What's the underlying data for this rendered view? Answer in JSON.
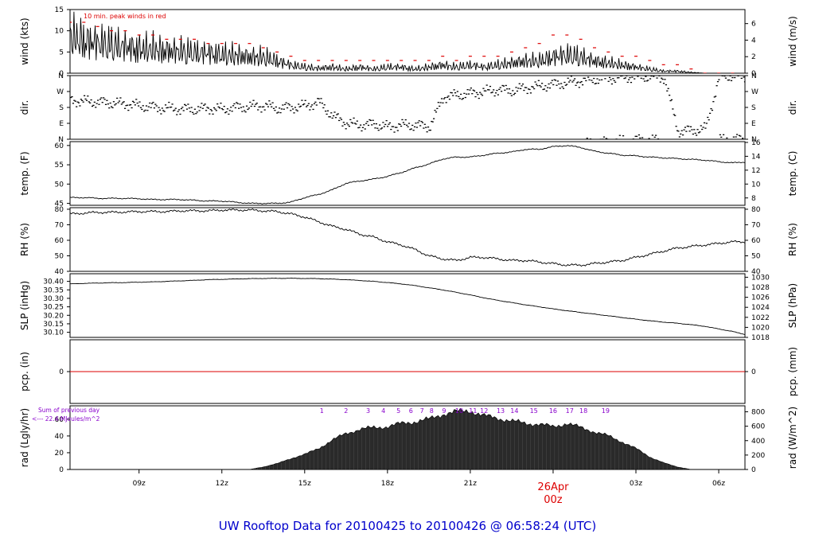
{
  "footer_title": "UW Rooftop Data for 20100425  to  20100426 @ 06:58:24  (UTC)",
  "colors": {
    "peak": "#dd0000",
    "pcp_line": "#dd0000",
    "title": "#0000cc",
    "hour_labels": "#8800cc",
    "date": "#dd0000"
  },
  "chart_data": [
    {
      "type": "line",
      "id": "wind",
      "ylabel": "wind (kts)",
      "ylabel_right": "wind (m/s)",
      "ylim": [
        0,
        15
      ],
      "yticks": [
        "0",
        "5",
        "10",
        "15"
      ],
      "ylim_right": [
        0,
        7.7
      ],
      "yticks_right": [
        "0",
        "2",
        "4",
        "6"
      ],
      "annotation": "10 min. peak winds in red",
      "x": [
        6.5,
        7,
        7.5,
        8,
        8.5,
        9,
        9.5,
        10,
        10.5,
        11,
        11.5,
        12,
        12.5,
        13,
        13.5,
        14,
        14.5,
        15,
        15.5,
        16,
        16.5,
        17,
        17.5,
        18,
        18.5,
        19,
        19.5,
        20,
        20.5,
        21,
        21.5,
        22,
        22.5,
        23,
        23.5,
        24,
        24.5,
        25,
        25.5,
        26,
        26.5,
        27,
        27.5,
        28,
        28.5,
        29,
        29.5,
        30,
        30.5,
        31
      ],
      "values": [
        9.5,
        8,
        7.5,
        7,
        6.5,
        6,
        6,
        5.5,
        5.5,
        5,
        5,
        4.5,
        4.5,
        4,
        4,
        3,
        2,
        1.5,
        1.2,
        1.5,
        1,
        1.5,
        1,
        1.5,
        1.5,
        1,
        1.5,
        2,
        1.5,
        2,
        1.5,
        2,
        2.5,
        3,
        3,
        4,
        4.5,
        4,
        3,
        2.5,
        2,
        1.5,
        1,
        0.5,
        0.5,
        0.2,
        0,
        0,
        0,
        0
      ],
      "peaks": [
        12,
        12,
        11,
        10,
        10,
        9,
        9,
        8,
        8,
        8,
        7,
        7,
        7,
        7,
        6,
        5,
        4,
        3,
        3,
        3,
        3,
        3,
        3,
        3,
        3,
        3,
        3,
        4,
        3,
        4,
        4,
        4,
        5,
        6,
        7,
        9,
        9,
        8,
        6,
        5,
        4,
        4,
        3,
        2,
        2,
        1,
        0,
        0,
        0,
        0
      ]
    },
    {
      "type": "scatter",
      "id": "dir",
      "ylabel": "dir.",
      "ylabel_right": "dir.",
      "ylim": [
        0,
        360
      ],
      "yticks": [
        "N",
        "E",
        "S",
        "W",
        "N"
      ],
      "yticks_right": [
        "N",
        "E",
        "S",
        "W",
        "N"
      ],
      "x": [
        6.5,
        7,
        7.5,
        8,
        8.5,
        9,
        9.5,
        10,
        10.5,
        11,
        11.5,
        12,
        12.5,
        13,
        13.5,
        14,
        14.5,
        15,
        15.5,
        16,
        16.5,
        17,
        17.5,
        18,
        18.5,
        19,
        19.5,
        20,
        20.5,
        21,
        21.5,
        22,
        22.5,
        23,
        23.5,
        24,
        24.5,
        25,
        25.5,
        26,
        26.5,
        27,
        27.5,
        28,
        28.5,
        29,
        29.5,
        30,
        30.5,
        31
      ],
      "values": [
        220,
        215,
        210,
        205,
        200,
        190,
        180,
        175,
        170,
        170,
        175,
        170,
        180,
        185,
        190,
        175,
        180,
        190,
        210,
        130,
        90,
        80,
        85,
        70,
        80,
        80,
        70,
        240,
        250,
        260,
        270,
        280,
        275,
        290,
        300,
        310,
        320,
        330,
        340,
        345,
        350,
        355,
        355,
        350,
        45,
        50,
        60,
        355,
        360,
        355
      ]
    },
    {
      "type": "line",
      "id": "temp",
      "ylabel": "temp. (F)",
      "ylabel_right": "temp. (C)",
      "ylim": [
        44.5,
        61
      ],
      "yticks": [
        "45",
        "50",
        "55",
        "60"
      ],
      "ylim_right": [
        6.94,
        16.11
      ],
      "yticks_right": [
        "8",
        "10",
        "12",
        "14",
        "16"
      ],
      "x": [
        6.5,
        7,
        7.5,
        8,
        8.5,
        9,
        9.5,
        10,
        10.5,
        11,
        11.5,
        12,
        12.5,
        13,
        13.5,
        14,
        14.5,
        15,
        15.5,
        16,
        16.5,
        17,
        17.5,
        18,
        18.5,
        19,
        19.5,
        20,
        20.5,
        21,
        21.5,
        22,
        22.5,
        23,
        23.5,
        24,
        24.5,
        25,
        25.5,
        26,
        26.5,
        27,
        27.5,
        28,
        28.5,
        29,
        29.5,
        30,
        30.5,
        31
      ],
      "values": [
        46.5,
        46.5,
        46.3,
        46.3,
        46.3,
        46.2,
        46,
        46,
        46,
        45.8,
        45.6,
        45.6,
        45.3,
        45,
        45,
        45,
        45.3,
        46.5,
        47.3,
        48.5,
        50.2,
        50.8,
        51.3,
        52,
        53,
        54.2,
        55.2,
        56.5,
        57,
        57,
        57.5,
        58,
        58.3,
        59,
        59,
        59.7,
        60,
        59.5,
        58.5,
        58,
        57.5,
        57.3,
        57,
        56.8,
        56.6,
        56.4,
        56.2,
        55.8,
        55.5,
        55.7
      ]
    },
    {
      "type": "line",
      "id": "rh",
      "ylabel": "RH (%)",
      "ylabel_right": "RH (%)",
      "ylim": [
        40,
        81
      ],
      "yticks": [
        "40",
        "50",
        "60",
        "70",
        "80"
      ],
      "yticks_right": [
        "40",
        "50",
        "60",
        "70",
        "80"
      ],
      "x": [
        6.5,
        7,
        7.5,
        8,
        8.5,
        9,
        9.5,
        10,
        10.5,
        11,
        11.5,
        12,
        12.5,
        13,
        13.5,
        14,
        14.5,
        15,
        15.5,
        16,
        16.5,
        17,
        17.5,
        18,
        18.5,
        19,
        19.5,
        20,
        20.5,
        21,
        21.5,
        22,
        22.5,
        23,
        23.5,
        24,
        24.5,
        25,
        25.5,
        26,
        26.5,
        27,
        27.5,
        28,
        28.5,
        29,
        29.5,
        30,
        30.5,
        31
      ],
      "values": [
        77,
        77.5,
        78,
        78,
        78.2,
        78.5,
        78.5,
        78.5,
        79,
        79,
        79,
        79.5,
        79.5,
        79.5,
        79,
        78.5,
        77,
        75,
        72,
        69,
        67,
        64,
        62,
        59,
        57,
        54,
        50,
        48,
        47,
        49,
        49,
        48,
        47,
        47,
        46,
        45,
        44,
        44,
        45,
        46,
        47,
        49,
        51,
        53,
        55,
        56,
        57,
        58,
        59,
        59
      ]
    },
    {
      "type": "line",
      "id": "slp",
      "ylabel": "SLP (inHg)",
      "ylabel_right": "SLP (hPa)",
      "ylim": [
        30.07,
        30.445
      ],
      "yticks": [
        "30.10",
        "30.15",
        "30.20",
        "30.25",
        "30.30",
        "30.35",
        "30.40"
      ],
      "ylim_right": [
        1018,
        1030.7
      ],
      "yticks_right": [
        "1018",
        "1020",
        "1022",
        "1024",
        "1026",
        "1028",
        "1030"
      ],
      "x": [
        6.5,
        7,
        7.5,
        8,
        8.5,
        9,
        9.5,
        10,
        10.5,
        11,
        11.5,
        12,
        12.5,
        13,
        13.5,
        14,
        14.5,
        15,
        15.5,
        16,
        16.5,
        17,
        17.5,
        18,
        18.5,
        19,
        19.5,
        20,
        20.5,
        21,
        21.5,
        22,
        22.5,
        23,
        23.5,
        24,
        24.5,
        25,
        25.5,
        26,
        26.5,
        27,
        27.5,
        28,
        28.5,
        29,
        29.5,
        30,
        30.5,
        31
      ],
      "values": [
        30.385,
        30.388,
        30.39,
        30.392,
        30.393,
        30.395,
        30.397,
        30.4,
        30.403,
        30.406,
        30.41,
        30.412,
        30.414,
        30.416,
        30.417,
        30.418,
        30.418,
        30.417,
        30.416,
        30.413,
        30.41,
        30.405,
        30.4,
        30.393,
        30.385,
        30.375,
        30.362,
        30.35,
        30.335,
        30.32,
        30.303,
        30.288,
        30.275,
        30.262,
        30.25,
        30.238,
        30.227,
        30.217,
        30.207,
        30.197,
        30.187,
        30.177,
        30.168,
        30.16,
        30.153,
        30.145,
        30.135,
        30.12,
        30.105,
        30.085
      ]
    },
    {
      "type": "line",
      "id": "pcp",
      "ylabel": "pcp. (in)",
      "ylabel_right": "pcp. (mm)",
      "ylim": [
        -0.1,
        0.1
      ],
      "yticks": [
        "0"
      ],
      "yticks_right": [
        "0"
      ],
      "x": [
        6.5,
        31
      ],
      "values": [
        0,
        0
      ]
    },
    {
      "type": "area",
      "id": "rad",
      "ylabel": "rad (Lgly/hr)",
      "ylabel_right": "rad (W/m^2)",
      "ylim": [
        0,
        76
      ],
      "yticks": [
        "0",
        "20",
        "40",
        "60"
      ],
      "ylim_right": [
        0,
        883
      ],
      "yticks_right": [
        "0",
        "200",
        "400",
        "600",
        "800"
      ],
      "annotation_line1": "Sum of previous day",
      "annotation_line2": "<--- 22.4 MJoules/m^2",
      "hour_labels": [
        "1",
        "2",
        "3",
        "4",
        "5",
        "6",
        "7",
        "8",
        "9",
        "10",
        "11",
        "12",
        "13",
        "14",
        "15",
        "16",
        "17",
        "18",
        "19"
      ],
      "hour_label_x": [
        15.62,
        16.5,
        17.3,
        17.85,
        18.4,
        18.85,
        19.25,
        19.6,
        20.05,
        20.6,
        21.1,
        21.5,
        22.1,
        22.6,
        23.3,
        24.0,
        24.6,
        25.1,
        25.9
      ],
      "x": [
        13,
        13.5,
        14,
        14.5,
        15,
        15.5,
        16,
        16.5,
        17,
        17.5,
        18,
        18.5,
        19,
        19.5,
        20,
        20.5,
        21,
        21.5,
        22,
        22.5,
        23,
        23.5,
        24,
        24.5,
        25,
        25.5,
        26,
        26.5,
        27,
        27.5,
        28,
        28.5,
        29
      ],
      "values": [
        0,
        3,
        7,
        13,
        18,
        25,
        35,
        43,
        48,
        50,
        51,
        55,
        57,
        60,
        66,
        69,
        70,
        64,
        61,
        58,
        55,
        54,
        51,
        55,
        50,
        45,
        40,
        33,
        25,
        15,
        8,
        3,
        0
      ]
    }
  ],
  "time_axis": {
    "ticks": [
      9,
      12,
      15,
      18,
      21,
      24,
      27,
      30
    ],
    "labels": [
      "09z",
      "12z",
      "15z",
      "18z",
      "21z",
      "",
      "03z",
      "06z"
    ],
    "date_label": "26Apr",
    "date_sublabel": "00z",
    "xlim": [
      6.5,
      30.95
    ]
  }
}
